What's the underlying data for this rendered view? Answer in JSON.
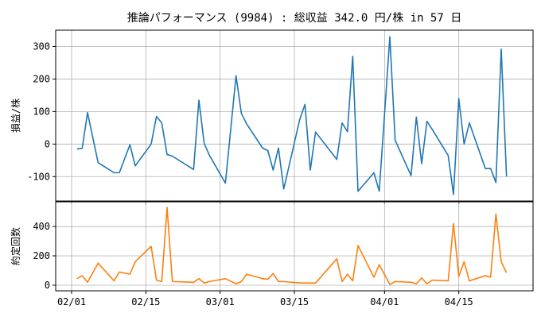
{
  "chart_data": [
    {
      "type": "line",
      "title": "推論パフォーマンス (9984) : 総収益 342.0 円/株 in 57 日",
      "ylabel": "損益/株",
      "x": [
        "02/02",
        "02/03",
        "02/04",
        "02/06",
        "02/09",
        "02/10",
        "02/12",
        "02/13",
        "02/16",
        "02/17",
        "02/18",
        "02/19",
        "02/20",
        "02/24",
        "02/25",
        "02/26",
        "02/27",
        "03/02",
        "03/04",
        "03/05",
        "03/06",
        "03/09",
        "03/10",
        "03/11",
        "03/12",
        "03/13",
        "03/16",
        "03/17",
        "03/18",
        "03/19",
        "03/23",
        "03/24",
        "03/25",
        "03/26",
        "03/27",
        "03/30",
        "03/31",
        "04/02",
        "04/03",
        "04/06",
        "04/07",
        "04/08",
        "04/09",
        "04/10",
        "04/13",
        "04/14",
        "04/15",
        "04/16",
        "04/17",
        "04/20",
        "04/21",
        "04/22",
        "04/23",
        "04/24"
      ],
      "series": [
        {
          "color": "#1f77b4",
          "values": [
            -15,
            -13,
            97,
            -57,
            -88,
            -88,
            -2,
            -67,
            0,
            85,
            65,
            -32,
            -37,
            -78,
            135,
            2,
            -35,
            -120,
            210,
            95,
            62,
            -12,
            -20,
            -80,
            -12,
            -138,
            75,
            122,
            -80,
            37,
            -47,
            65,
            38,
            270,
            -145,
            -88,
            -145,
            330,
            12,
            -97,
            83,
            -60,
            70,
            45,
            -35,
            -155,
            140,
            0,
            65,
            -75,
            -75,
            -118,
            292,
            -100
          ]
        }
      ],
      "xlim": [
        "01/29",
        "04/29"
      ],
      "xticks": [
        "02/01",
        "02/15",
        "03/01",
        "03/15",
        "04/01",
        "04/15"
      ],
      "ylim": [
        -175,
        350
      ],
      "yticks": [
        -100,
        0,
        100,
        200,
        300
      ],
      "grid": true
    },
    {
      "type": "line",
      "ylabel": "約定回数",
      "x": [
        "02/02",
        "02/03",
        "02/04",
        "02/06",
        "02/09",
        "02/10",
        "02/12",
        "02/13",
        "02/16",
        "02/17",
        "02/18",
        "02/19",
        "02/20",
        "02/24",
        "02/25",
        "02/26",
        "02/27",
        "03/02",
        "03/04",
        "03/05",
        "03/06",
        "03/09",
        "03/10",
        "03/11",
        "03/12",
        "03/13",
        "03/16",
        "03/17",
        "03/18",
        "03/19",
        "03/23",
        "03/24",
        "03/25",
        "03/26",
        "03/27",
        "03/30",
        "03/31",
        "04/02",
        "04/03",
        "04/06",
        "04/07",
        "04/08",
        "04/09",
        "04/10",
        "04/13",
        "04/14",
        "04/15",
        "04/16",
        "04/17",
        "04/20",
        "04/21",
        "04/22",
        "04/23",
        "04/24"
      ],
      "series": [
        {
          "color": "#ff7f0e",
          "values": [
            45,
            65,
            20,
            150,
            30,
            90,
            75,
            160,
            265,
            35,
            25,
            530,
            25,
            20,
            45,
            15,
            25,
            45,
            10,
            25,
            75,
            45,
            40,
            80,
            25,
            25,
            15,
            15,
            15,
            15,
            180,
            25,
            75,
            30,
            270,
            55,
            140,
            5,
            25,
            20,
            10,
            50,
            10,
            35,
            30,
            420,
            60,
            160,
            30,
            65,
            55,
            485,
            160,
            85
          ]
        }
      ],
      "xlim": [
        "01/29",
        "04/29"
      ],
      "xticks": [
        "02/01",
        "02/15",
        "03/01",
        "03/15",
        "04/01",
        "04/15"
      ],
      "ylim": [
        -38,
        568
      ],
      "yticks": [
        0,
        200,
        400
      ],
      "grid": true
    }
  ]
}
